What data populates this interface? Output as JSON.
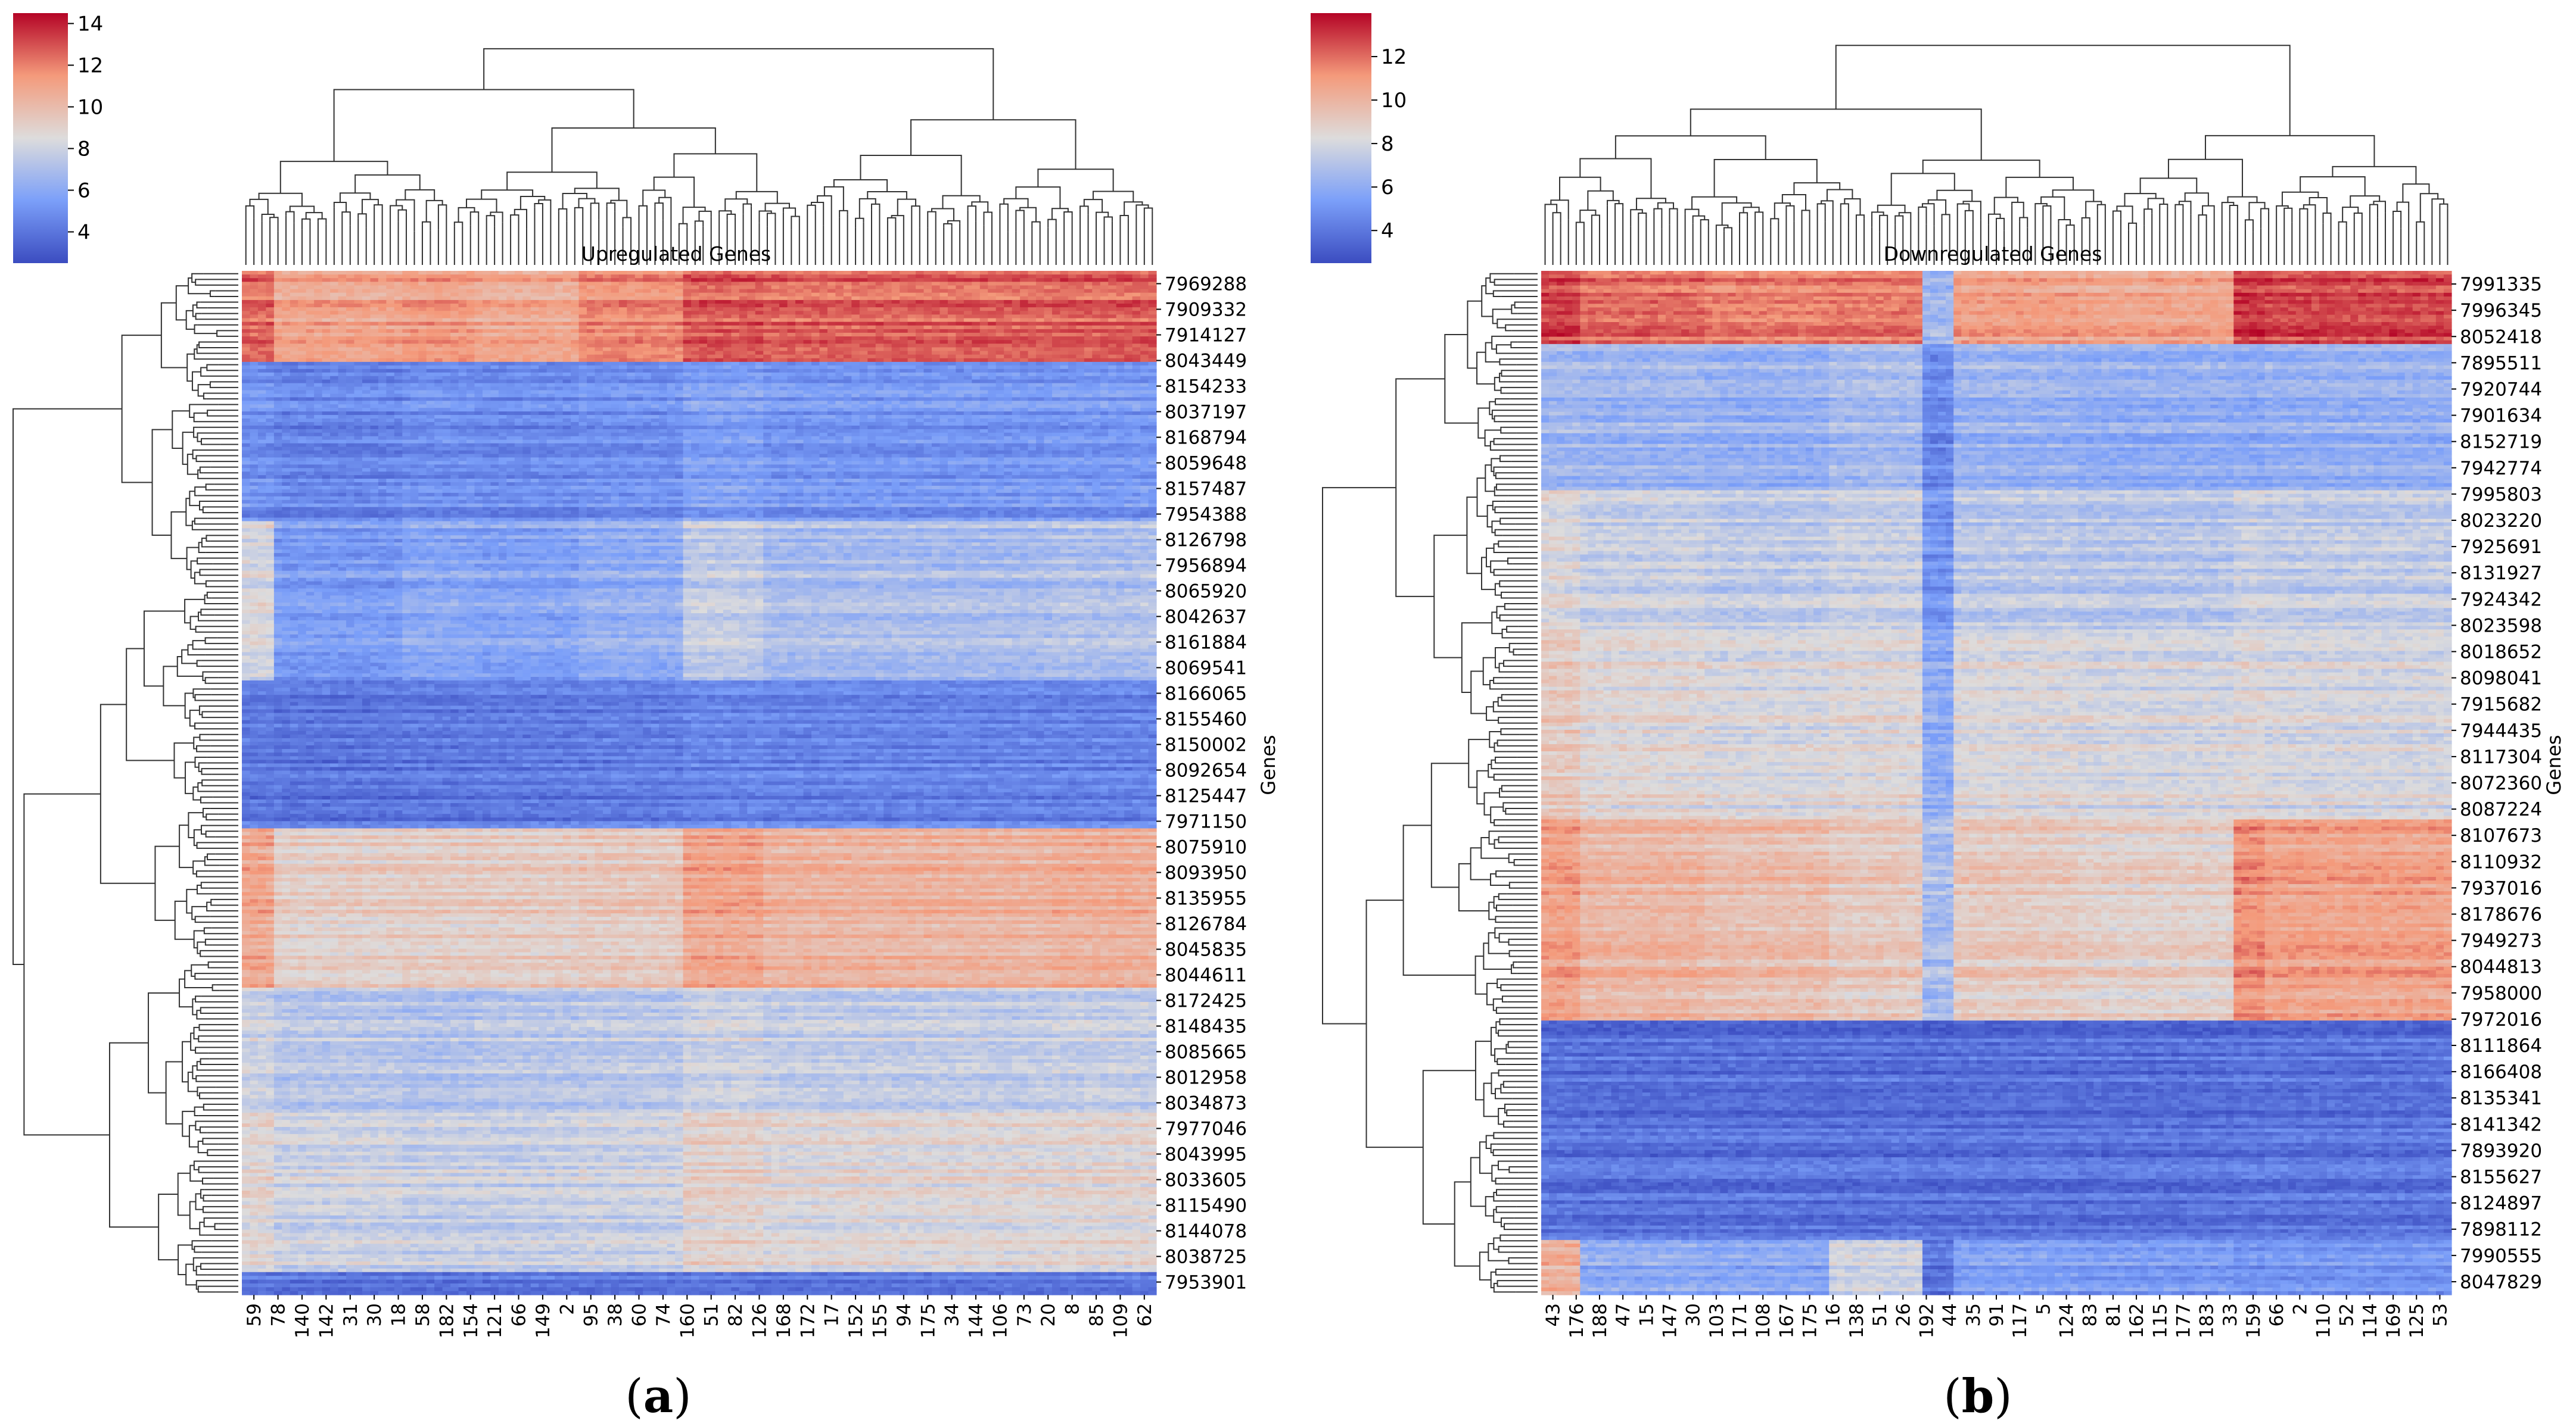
{
  "chart_data": [
    {
      "type": "heatmap",
      "panel_label": "(a)",
      "panel_letter": "a",
      "title": "Upregulated Genes",
      "ylabel": "Genes",
      "colorbar": {
        "min": 2.5,
        "max": 14.5,
        "ticks": [
          "4",
          "6",
          "8",
          "10",
          "12",
          "14"
        ]
      },
      "gene_labels": [
        "7969288",
        "7909332",
        "7914127",
        "8043449",
        "8154233",
        "8037197",
        "8168794",
        "8059648",
        "8157487",
        "7954388",
        "8126798",
        "7956894",
        "8065920",
        "8042637",
        "8161884",
        "8069541",
        "8166065",
        "8155460",
        "8150002",
        "8092654",
        "8125447",
        "7971150",
        "8075910",
        "8093950",
        "8135955",
        "8126784",
        "8045835",
        "8044611",
        "8172425",
        "8148435",
        "8085665",
        "8012958",
        "8034873",
        "7977046",
        "8043995",
        "8033605",
        "8115490",
        "8144078",
        "8038725",
        "7953901"
      ],
      "sample_labels": [
        "59",
        "78",
        "140",
        "142",
        "31",
        "30",
        "18",
        "58",
        "182",
        "154",
        "121",
        "66",
        "149",
        "2",
        "95",
        "38",
        "60",
        "74",
        "160",
        "51",
        "82",
        "126",
        "168",
        "172",
        "17",
        "152",
        "155",
        "94",
        "175",
        "34",
        "144",
        "106",
        "73",
        "20",
        "8",
        "85",
        "109",
        "62"
      ],
      "row_blocks": [
        {
          "values": [
            12.5,
            11.0,
            11.3,
            10.8,
            11.8,
            12.8,
            12.6,
            12.7
          ],
          "weight": 8
        },
        {
          "values": [
            5.0,
            4.6,
            4.9,
            4.8,
            5.0,
            5.6,
            5.2,
            5.3
          ],
          "weight": 14
        },
        {
          "values": [
            8.4,
            5.5,
            6.0,
            5.8,
            6.3,
            7.7,
            7.0,
            7.2
          ],
          "weight": 14
        },
        {
          "values": [
            4.0,
            3.9,
            4.0,
            4.1,
            4.2,
            4.5,
            4.4,
            4.4
          ],
          "weight": 13
        },
        {
          "values": [
            10.9,
            9.2,
            9.3,
            9.3,
            9.5,
            11.0,
            10.4,
            10.6
          ],
          "weight": 14
        },
        {
          "values": [
            8.1,
            7.5,
            7.3,
            7.5,
            7.6,
            8.1,
            7.8,
            7.9
          ],
          "weight": 11
        },
        {
          "values": [
            8.8,
            8.0,
            7.8,
            7.8,
            8.0,
            9.0,
            8.6,
            8.7
          ],
          "weight": 14
        },
        {
          "values": [
            4.0,
            3.9,
            3.9,
            4.0,
            4.0,
            4.1,
            4.0,
            4.1
          ],
          "weight": 2
        }
      ],
      "col_weights": [
        1,
        5,
        2.5,
        4,
        4,
        3,
        11,
        4
      ]
    },
    {
      "type": "heatmap",
      "panel_label": "(b)",
      "panel_letter": "b",
      "title": "Downregulated Genes",
      "ylabel": "Genes",
      "colorbar": {
        "min": 2.5,
        "max": 14.0,
        "ticks": [
          "4",
          "6",
          "8",
          "10",
          "12"
        ]
      },
      "gene_labels": [
        "7991335",
        "7996345",
        "8052418",
        "7895511",
        "7920744",
        "7901634",
        "8152719",
        "7942774",
        "7995803",
        "8023220",
        "7925691",
        "8131927",
        "7924342",
        "8023598",
        "8018652",
        "8098041",
        "7915682",
        "7944435",
        "8117304",
        "8072360",
        "8087224",
        "8107673",
        "8110932",
        "7937016",
        "8178676",
        "7949273",
        "8044813",
        "7958000",
        "7972016",
        "8111864",
        "8166408",
        "8135341",
        "8141342",
        "7893920",
        "8155627",
        "8124897",
        "7898112",
        "7990555",
        "8047829"
      ],
      "sample_labels": [
        "43",
        "176",
        "188",
        "47",
        "15",
        "147",
        "30",
        "103",
        "171",
        "108",
        "167",
        "175",
        "16",
        "138",
        "51",
        "26",
        "192",
        "44",
        "35",
        "91",
        "117",
        "5",
        "124",
        "83",
        "81",
        "162",
        "115",
        "177",
        "183",
        "33",
        "159",
        "66",
        "2",
        "110",
        "52",
        "114",
        "169",
        "125",
        "53"
      ],
      "row_blocks": [
        {
          "values": [
            12.8,
            12.0,
            11.6,
            11.7,
            6.5,
            10.8,
            10.6,
            13.0,
            12.7
          ],
          "weight": 4
        },
        {
          "values": [
            6.6,
            6.5,
            6.3,
            6.8,
            4.8,
            6.4,
            6.2,
            6.1,
            6.3
          ],
          "weight": 8
        },
        {
          "values": [
            8.2,
            7.6,
            7.3,
            7.6,
            5.0,
            7.2,
            7.1,
            7.6,
            7.4
          ],
          "weight": 8
        },
        {
          "values": [
            9.1,
            8.4,
            8.1,
            8.3,
            5.9,
            8.2,
            8.0,
            8.3,
            8.0
          ],
          "weight": 10
        },
        {
          "values": [
            10.8,
            9.9,
            9.6,
            9.1,
            6.7,
            9.1,
            8.8,
            11.3,
            10.7
          ],
          "weight": 11
        },
        {
          "values": [
            3.9,
            3.8,
            3.8,
            3.8,
            3.7,
            3.8,
            3.8,
            3.9,
            3.9
          ],
          "weight": 12
        },
        {
          "values": [
            10.2,
            6.0,
            5.8,
            7.8,
            4.0,
            5.5,
            5.3,
            5.0,
            5.1
          ],
          "weight": 3
        }
      ],
      "col_weights": [
        1,
        4,
        4,
        3,
        1,
        4,
        5,
        1,
        6
      ]
    }
  ]
}
